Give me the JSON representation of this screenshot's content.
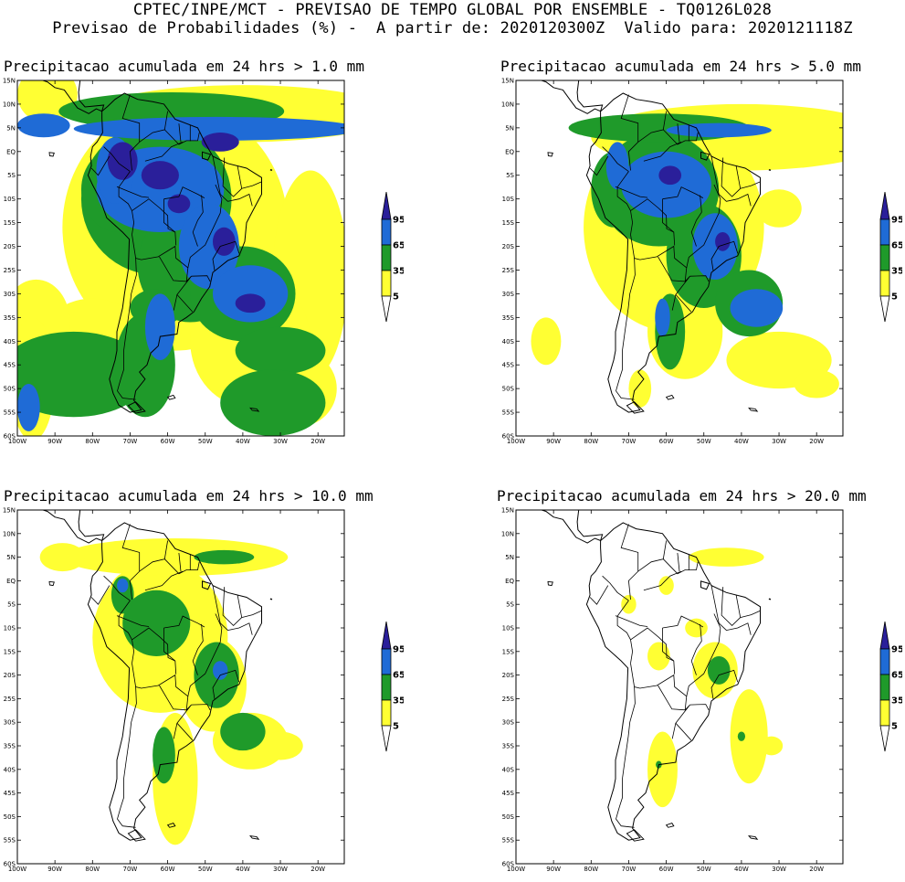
{
  "header": {
    "line1": "CPTEC/INPE/MCT - PREVISAO DE TEMPO GLOBAL POR ENSEMBLE - TQ0126L028",
    "line2": "Previsao de Probabilidades (%) -  A partir de: 2020120300Z  Valido para: 2020121118Z"
  },
  "axes": {
    "lat_labels": [
      "15N",
      "10N",
      "5N",
      "EQ",
      "5S",
      "10S",
      "15S",
      "20S",
      "25S",
      "30S",
      "35S",
      "40S",
      "45S",
      "50S",
      "55S",
      "60S"
    ],
    "lon_labels": [
      "100W",
      "90W",
      "80W",
      "70W",
      "60W",
      "50W",
      "40W",
      "30W",
      "20W"
    ]
  },
  "colorbar": {
    "labels": [
      "95",
      "65",
      "35",
      "5"
    ],
    "colors": {
      "c95": "#2a1f9a",
      "c65": "#1f6bd6",
      "c35": "#1f9a2a",
      "c5": "#ffff33"
    }
  },
  "chart_data": [
    {
      "type": "heatmap",
      "title": "Precipitacao acumulada em 24 hrs > 1.0 mm",
      "lon_range": [
        -100,
        -13
      ],
      "lat_range": [
        -60,
        15
      ],
      "threshold_mm": 1.0
    },
    {
      "type": "heatmap",
      "title": "Precipitacao acumulada em 24 hrs > 5.0 mm",
      "lon_range": [
        -100,
        -13
      ],
      "lat_range": [
        -60,
        15
      ],
      "threshold_mm": 5.0
    },
    {
      "type": "heatmap",
      "title": "Precipitacao acumulada em 24 hrs > 10.0 mm",
      "lon_range": [
        -100,
        -13
      ],
      "lat_range": [
        -60,
        15
      ],
      "threshold_mm": 10.0
    },
    {
      "type": "heatmap",
      "title": "Precipitacao acumulada em 24 hrs > 20.0 mm",
      "lon_range": [
        -100,
        -13
      ],
      "lat_range": [
        -60,
        15
      ],
      "threshold_mm": 20.0
    }
  ]
}
